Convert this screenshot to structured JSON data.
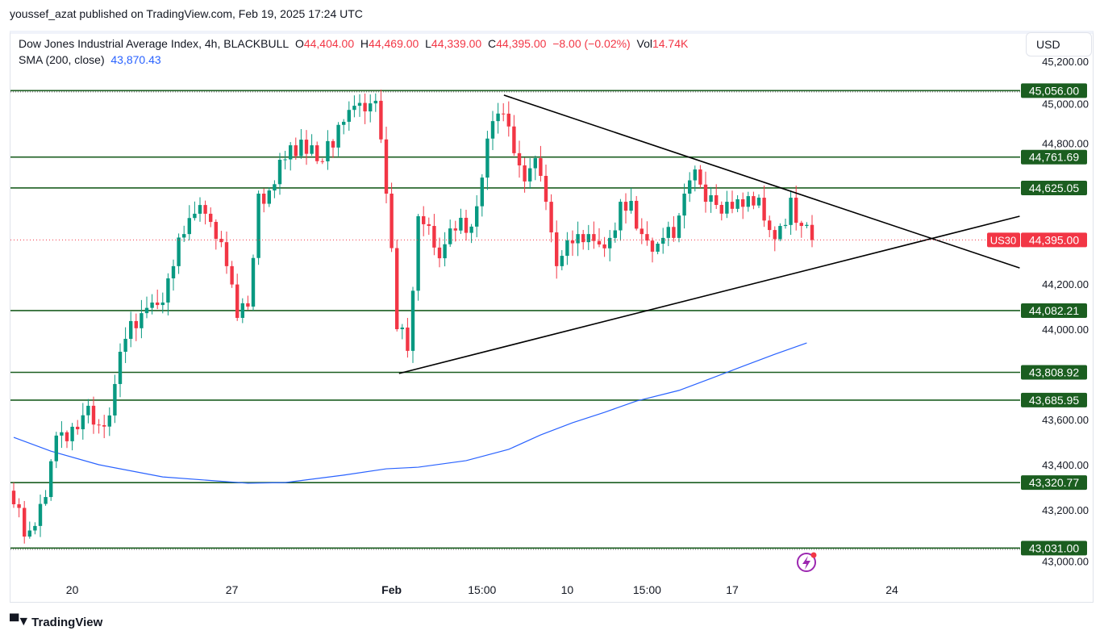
{
  "publisher": "youssef_azat published on TradingView.com, Feb 19, 2025 17:24 UTC",
  "legend": {
    "symbol": "Dow Jones Industrial Average Index, 4h, BLACKBULL",
    "o_label": "O",
    "o": "44,404.00",
    "h_label": "H",
    "h": "44,469.00",
    "l_label": "L",
    "l": "44,339.00",
    "c_label": "C",
    "c": "44,395.00",
    "change": "−8.00 (−0.02%)",
    "vol_label": "Vol",
    "vol": "14.74K",
    "sma_label": "SMA (200, close)",
    "sma": "43,870.43"
  },
  "currency": "USD",
  "brand": "TradingView",
  "colors": {
    "up": "#089981",
    "down": "#f23645",
    "sma": "#2962ff",
    "level": "#1b5e20",
    "trend": "#000000"
  },
  "chart_data": {
    "type": "candlestick",
    "symbol_tag": "US30",
    "last_price": "44,395.00",
    "ylim": [
      42990,
      45250
    ],
    "y_ticks": [
      {
        "v": 45200,
        "t": "45,200.00"
      },
      {
        "v": 45000,
        "t": "45,000.00"
      },
      {
        "v": 44800,
        "t": "44,800.00"
      },
      {
        "v": 44200,
        "t": "44,200.00"
      },
      {
        "v": 44000,
        "t": "44,000.00"
      },
      {
        "v": 43600,
        "t": "43,600.00"
      },
      {
        "v": 43400,
        "t": "43,400.00"
      },
      {
        "v": 43200,
        "t": "43,200.00"
      },
      {
        "v": 43000,
        "t": "43,000.00"
      }
    ],
    "x_ticks": [
      {
        "bar": 11,
        "t": "20"
      },
      {
        "bar": 41,
        "t": "27"
      },
      {
        "bar": 71,
        "t": "Feb"
      },
      {
        "bar": 88,
        "t": "15:00"
      },
      {
        "bar": 104,
        "t": "10"
      },
      {
        "bar": 119,
        "t": "15:00"
      },
      {
        "bar": 135,
        "t": "17"
      },
      {
        "bar": 165,
        "t": "24"
      }
    ],
    "closes_8h": [
      43225,
      43082,
      43129,
      43257,
      43529,
      43504,
      43557,
      43661,
      43575,
      43618,
      43900,
      44036,
      44071,
      44118,
      44118,
      44279,
      44421,
      44511,
      44511,
      44400,
      44279,
      44050,
      44100,
      44600,
      44614,
      44750,
      44814,
      44839,
      44814,
      44743,
      44804,
      44918,
      44989,
      44964,
      45011,
      44600,
      44000,
      43904,
      44500,
      44457,
      44314,
      44446,
      44493,
      44454,
      44671,
      44921,
      44954,
      44779,
      44654,
      44757,
      44564,
      44279,
      44393,
      44421,
      44421,
      44375,
      44404,
      44564,
      44568,
      44421,
      44343,
      44404,
      44404,
      44600,
      44707,
      44564,
      44550,
      44564,
      44575,
      44589,
      44582,
      44439,
      44457,
      44582,
      44457,
      44395
    ],
    "sma_200": [
      [
        0,
        43521
      ],
      [
        7,
        43460
      ],
      [
        16,
        43400
      ],
      [
        28,
        43346
      ],
      [
        44,
        43318
      ],
      [
        51,
        43321
      ],
      [
        62,
        43354
      ],
      [
        70,
        43382
      ],
      [
        76,
        43389
      ],
      [
        85,
        43418
      ],
      [
        93,
        43468
      ],
      [
        99,
        43532
      ],
      [
        105,
        43586
      ],
      [
        111,
        43632
      ],
      [
        117,
        43682
      ],
      [
        125,
        43729
      ],
      [
        131,
        43782
      ],
      [
        137,
        43836
      ],
      [
        143,
        43889
      ],
      [
        149,
        43939
      ]
    ],
    "levels": [
      {
        "v": 45056,
        "t": "45,056.00",
        "dotted": true
      },
      {
        "v": 44761.69,
        "t": "44,761.69"
      },
      {
        "v": 44625.05,
        "t": "44,625.05"
      },
      {
        "v": 44082.21,
        "t": "44,082.21"
      },
      {
        "v": 43808.92,
        "t": "43,808.92"
      },
      {
        "v": 43685.95,
        "t": "43,685.95"
      },
      {
        "v": 43320.77,
        "t": "43,320.77"
      },
      {
        "v": 43031,
        "t": "43,031.00",
        "dotted": true
      }
    ],
    "trendlines": [
      {
        "from": [
          92.1,
          45036
        ],
        "to": [
          189,
          44271
        ]
      },
      {
        "from": [
          72.4,
          43804
        ],
        "to": [
          189,
          44500
        ]
      }
    ]
  }
}
